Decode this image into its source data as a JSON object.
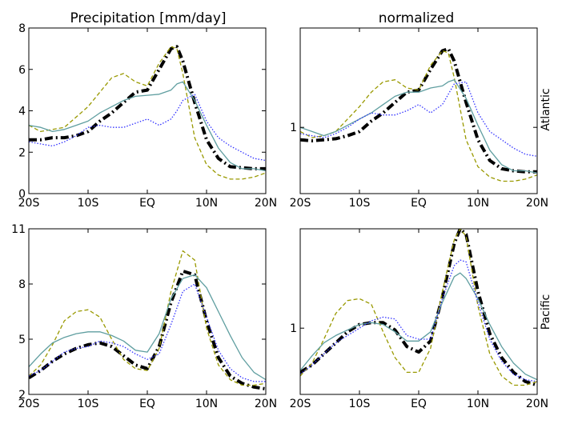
{
  "figure": {
    "col_titles": [
      "Precipitation [mm/day]",
      "normalized"
    ],
    "row_labels": [
      "Atlantic",
      "Pacific"
    ],
    "colors": {
      "black": "#000000",
      "olive": "#999900",
      "teal": "#5f9ea0",
      "blue": "#3333ff"
    }
  },
  "chart_data": [
    {
      "type": "line",
      "panel": "atlantic-absolute",
      "title": "Precipitation [mm/day]",
      "xlim": [
        -20,
        20
      ],
      "ylim": [
        0,
        8
      ],
      "x_ticks": [
        -20,
        -10,
        0,
        10,
        20
      ],
      "x_tick_labels": [
        "20S",
        "10S",
        "EQ",
        "10N",
        "20N"
      ],
      "y_ticks": [
        0,
        2,
        4,
        6,
        8
      ],
      "y_tick_labels": [
        "0",
        "2",
        "4",
        "6",
        "8"
      ],
      "grid": false,
      "x": [
        -20,
        -18,
        -16,
        -14,
        -12,
        -10,
        -8,
        -6,
        -4,
        -2,
        0,
        2,
        4,
        5,
        6,
        8,
        10,
        12,
        14,
        16,
        18,
        20
      ],
      "series": [
        {
          "style": "dash-dot-thick",
          "color": "#000000",
          "values": [
            2.6,
            2.6,
            2.7,
            2.7,
            2.8,
            3.0,
            3.5,
            3.9,
            4.4,
            4.9,
            5.0,
            6.0,
            7.0,
            7.1,
            6.4,
            4.4,
            2.6,
            1.7,
            1.3,
            1.25,
            1.2,
            1.2
          ]
        },
        {
          "style": "dashed",
          "color": "#999900",
          "values": [
            3.3,
            3.0,
            3.1,
            3.2,
            3.7,
            4.2,
            4.9,
            5.6,
            5.8,
            5.4,
            5.2,
            6.3,
            7.1,
            7.0,
            5.8,
            2.7,
            1.4,
            0.9,
            0.7,
            0.7,
            0.8,
            1.0
          ]
        },
        {
          "style": "solid",
          "color": "#5f9ea0",
          "values": [
            3.3,
            3.2,
            3.0,
            3.1,
            3.3,
            3.5,
            3.9,
            4.2,
            4.5,
            4.7,
            4.75,
            4.8,
            5.0,
            5.3,
            5.4,
            4.5,
            3.3,
            2.2,
            1.5,
            1.2,
            1.2,
            1.1
          ]
        },
        {
          "style": "dotted",
          "color": "#3333ff",
          "values": [
            2.5,
            2.4,
            2.3,
            2.5,
            2.8,
            3.2,
            3.3,
            3.2,
            3.2,
            3.4,
            3.6,
            3.3,
            3.6,
            4.0,
            4.5,
            4.8,
            3.5,
            2.7,
            2.3,
            2.0,
            1.7,
            1.6
          ]
        }
      ]
    },
    {
      "type": "line",
      "panel": "atlantic-normalized",
      "title": "normalized",
      "row_label": "Atlantic",
      "xlim": [
        -20,
        20
      ],
      "ylim": [
        0,
        8
      ],
      "x_ticks": [
        -20,
        -10,
        0,
        10,
        20
      ],
      "x_tick_labels": [
        "20S",
        "10S",
        "EQ",
        "10N",
        "20N"
      ],
      "y_ticks": [
        3.2
      ],
      "y_tick_labels": [
        "1"
      ],
      "grid": false,
      "x": [
        -20,
        -18,
        -16,
        -14,
        -12,
        -10,
        -8,
        -6,
        -4,
        -2,
        0,
        2,
        4,
        5,
        6,
        8,
        10,
        12,
        14,
        16,
        18,
        20
      ],
      "series": [
        {
          "style": "dash-dot-thick",
          "color": "#000000",
          "values": [
            2.6,
            2.55,
            2.6,
            2.65,
            2.8,
            3.0,
            3.5,
            3.9,
            4.4,
            4.9,
            5.0,
            6.0,
            6.9,
            7.0,
            6.4,
            4.4,
            2.6,
            1.6,
            1.2,
            1.1,
            1.05,
            1.05
          ]
        },
        {
          "style": "dashed",
          "color": "#999900",
          "values": [
            3.0,
            2.7,
            2.8,
            3.0,
            3.6,
            4.2,
            4.9,
            5.4,
            5.5,
            5.1,
            5.0,
            6.2,
            6.9,
            6.8,
            5.6,
            2.6,
            1.3,
            0.8,
            0.6,
            0.6,
            0.7,
            0.9
          ]
        },
        {
          "style": "solid",
          "color": "#5f9ea0",
          "values": [
            3.2,
            3.0,
            2.8,
            3.0,
            3.3,
            3.6,
            3.9,
            4.3,
            4.7,
            4.9,
            4.9,
            5.1,
            5.2,
            5.4,
            5.5,
            4.6,
            3.3,
            2.1,
            1.4,
            1.1,
            1.1,
            1.0
          ]
        },
        {
          "style": "dotted",
          "color": "#3333ff",
          "values": [
            2.9,
            2.8,
            2.7,
            2.9,
            3.2,
            3.6,
            3.9,
            3.8,
            3.8,
            4.0,
            4.3,
            3.9,
            4.3,
            4.8,
            5.3,
            5.4,
            3.9,
            3.0,
            2.6,
            2.2,
            1.9,
            1.8
          ]
        }
      ]
    },
    {
      "type": "line",
      "panel": "pacific-absolute",
      "xlim": [
        -20,
        20
      ],
      "ylim": [
        2,
        11
      ],
      "x_ticks": [
        -20,
        -10,
        0,
        10,
        20
      ],
      "x_tick_labels": [
        "20S",
        "10S",
        "EQ",
        "10N",
        "20N"
      ],
      "y_ticks": [
        2,
        5,
        8,
        11
      ],
      "y_tick_labels": [
        "2",
        "5",
        "8",
        "11"
      ],
      "grid": false,
      "x": [
        -20,
        -18,
        -16,
        -14,
        -12,
        -10,
        -8,
        -6,
        -4,
        -2,
        0,
        2,
        4,
        6,
        8,
        10,
        12,
        14,
        16,
        18,
        20
      ],
      "series": [
        {
          "style": "dash-dot-thick",
          "color": "#000000",
          "values": [
            2.9,
            3.3,
            3.8,
            4.2,
            4.5,
            4.7,
            4.8,
            4.6,
            4.1,
            3.6,
            3.4,
            4.6,
            7.0,
            8.7,
            8.5,
            6.0,
            4.0,
            3.0,
            2.6,
            2.4,
            2.3
          ]
        },
        {
          "style": "dashed",
          "color": "#999900",
          "values": [
            3.0,
            3.6,
            4.7,
            6.0,
            6.5,
            6.6,
            6.2,
            5.0,
            3.9,
            3.4,
            3.3,
            4.5,
            7.6,
            9.8,
            9.3,
            5.6,
            3.6,
            2.8,
            2.5,
            2.5,
            2.6
          ]
        },
        {
          "style": "solid",
          "color": "#5f9ea0",
          "values": [
            3.5,
            4.2,
            4.8,
            5.1,
            5.3,
            5.4,
            5.4,
            5.2,
            4.9,
            4.4,
            4.3,
            5.3,
            7.2,
            8.3,
            8.5,
            7.8,
            6.5,
            5.2,
            4.0,
            3.2,
            2.8
          ]
        },
        {
          "style": "dotted",
          "color": "#3333ff",
          "values": [
            3.0,
            3.3,
            3.8,
            4.3,
            4.5,
            4.6,
            4.9,
            4.8,
            4.6,
            4.2,
            3.9,
            4.2,
            5.8,
            7.6,
            8.0,
            6.2,
            4.4,
            3.4,
            2.9,
            2.7,
            2.7
          ]
        }
      ]
    },
    {
      "type": "line",
      "panel": "pacific-normalized",
      "row_label": "Pacific",
      "xlim": [
        -20,
        20
      ],
      "ylim": [
        2,
        11
      ],
      "x_ticks": [
        -20,
        -10,
        0,
        10,
        20
      ],
      "x_tick_labels": [
        "20S",
        "10S",
        "EQ",
        "10N",
        "20N"
      ],
      "y_ticks": [
        5.6
      ],
      "y_tick_labels": [
        "1"
      ],
      "grid": false,
      "x": [
        -20,
        -18,
        -16,
        -14,
        -12,
        -10,
        -8,
        -6,
        -4,
        -2,
        0,
        2,
        4,
        6,
        7,
        8,
        10,
        12,
        14,
        16,
        18,
        20
      ],
      "series": [
        {
          "style": "dash-dot-thick",
          "color": "#000000",
          "values": [
            3.2,
            3.6,
            4.2,
            4.8,
            5.4,
            5.8,
            5.9,
            5.9,
            5.5,
            4.6,
            4.3,
            4.9,
            7.3,
            10.2,
            11.0,
            10.7,
            7.6,
            5.3,
            4.0,
            3.2,
            2.7,
            2.5
          ]
        },
        {
          "style": "dashed",
          "color": "#999900",
          "values": [
            3.0,
            3.7,
            5.0,
            6.4,
            7.1,
            7.2,
            6.9,
            5.4,
            4.0,
            3.2,
            3.2,
            4.5,
            7.6,
            10.4,
            11.0,
            10.6,
            6.8,
            4.2,
            3.0,
            2.5,
            2.5,
            2.7
          ]
        },
        {
          "style": "solid",
          "color": "#5f9ea0",
          "values": [
            3.3,
            4.1,
            4.8,
            5.2,
            5.5,
            5.8,
            5.9,
            5.8,
            5.4,
            4.9,
            4.9,
            5.4,
            7.0,
            8.4,
            8.6,
            8.3,
            7.2,
            5.8,
            4.6,
            3.7,
            3.1,
            2.8
          ]
        },
        {
          "style": "dotted",
          "color": "#3333ff",
          "values": [
            3.1,
            3.6,
            4.2,
            4.8,
            5.2,
            5.6,
            6.0,
            6.2,
            6.1,
            5.2,
            5.0,
            5.0,
            7.2,
            9.0,
            9.3,
            9.2,
            7.0,
            5.0,
            3.8,
            3.1,
            2.8,
            2.7
          ]
        }
      ]
    }
  ]
}
